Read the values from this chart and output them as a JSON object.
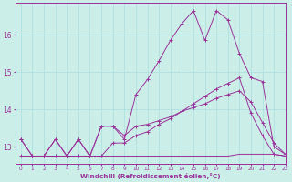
{
  "xlabel": "Windchill (Refroidissement éolien,°C)",
  "x": [
    0,
    1,
    2,
    3,
    4,
    5,
    6,
    7,
    8,
    9,
    10,
    11,
    12,
    13,
    14,
    15,
    16,
    17,
    18,
    19,
    20,
    21,
    22,
    23
  ],
  "line1": [
    13.2,
    12.75,
    12.75,
    13.2,
    12.75,
    13.2,
    12.75,
    13.55,
    13.55,
    13.2,
    14.4,
    14.8,
    15.3,
    15.85,
    16.3,
    16.65,
    15.85,
    16.65,
    16.4,
    15.5,
    14.85,
    14.75,
    13.0,
    12.8
  ],
  "line2": [
    12.75,
    12.75,
    12.75,
    12.75,
    12.75,
    12.75,
    12.75,
    13.55,
    13.55,
    13.3,
    13.55,
    13.6,
    13.7,
    13.8,
    13.95,
    14.05,
    14.15,
    14.3,
    14.4,
    14.5,
    14.2,
    13.65,
    13.1,
    12.8
  ],
  "line3": [
    12.75,
    12.75,
    12.75,
    12.75,
    12.75,
    12.75,
    12.75,
    12.75,
    12.75,
    12.75,
    12.75,
    12.75,
    12.75,
    12.75,
    12.75,
    12.75,
    12.75,
    12.75,
    12.75,
    12.8,
    12.8,
    12.8,
    12.8,
    12.75
  ],
  "line4": [
    13.2,
    12.75,
    12.75,
    13.2,
    12.75,
    13.2,
    12.75,
    12.75,
    13.1,
    13.1,
    13.3,
    13.4,
    13.6,
    13.75,
    13.95,
    14.15,
    14.35,
    14.55,
    14.7,
    14.85,
    13.9,
    13.3,
    12.8,
    12.75
  ],
  "line_color": "#993399",
  "bg_color": "#cceee8",
  "grid_color": "#aadddd",
  "ylim": [
    12.55,
    16.85
  ],
  "xlim": [
    -0.5,
    23
  ],
  "yticks": [
    13,
    14,
    15,
    16
  ],
  "xticks": [
    0,
    1,
    2,
    3,
    4,
    5,
    6,
    7,
    8,
    9,
    10,
    11,
    12,
    13,
    14,
    15,
    16,
    17,
    18,
    19,
    20,
    21,
    22,
    23
  ]
}
